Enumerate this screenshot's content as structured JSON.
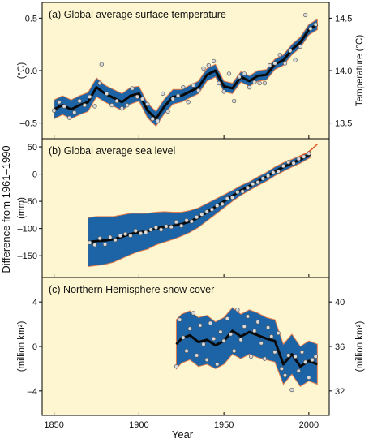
{
  "common": {
    "ylabel": "Difference from 1961–1990",
    "xlabel": "Year",
    "xlim": [
      1843,
      2012
    ],
    "xticks": [
      "1850",
      "1900",
      "1950",
      "2000"
    ],
    "xtick_values": [
      1850,
      1900,
      1950,
      2000
    ]
  },
  "colors": {
    "background": "#fdf6d0",
    "band": "#1d64a6",
    "band_edge": "#e67c4a",
    "line": "#0a0a0a",
    "point": "#d9d9d9",
    "point_edge": "#555555",
    "satellite": "#e05a2a"
  },
  "chart_data": [
    {
      "type": "line",
      "title": "(a) Global average surface temperature",
      "ylabel": "(°C)",
      "ylabel_right": "Temperature (°C)",
      "ylim": [
        -0.65,
        0.65
      ],
      "yticks": [
        "0.5",
        "0.0",
        "–0.5"
      ],
      "ytick_values": [
        0.5,
        0.0,
        -0.5
      ],
      "yticks_right": [
        "14.5",
        "14.0",
        "13.5"
      ],
      "ytick_right_values": [
        0.5,
        0.0,
        -0.5
      ],
      "smoothed": {
        "x": [
          1850,
          1855,
          1860,
          1865,
          1870,
          1875,
          1880,
          1885,
          1890,
          1895,
          1900,
          1905,
          1910,
          1915,
          1920,
          1925,
          1930,
          1935,
          1940,
          1945,
          1950,
          1955,
          1960,
          1965,
          1970,
          1975,
          1980,
          1985,
          1990,
          1995,
          2000,
          2005
        ],
        "y": [
          -0.37,
          -0.33,
          -0.37,
          -0.33,
          -0.3,
          -0.16,
          -0.22,
          -0.26,
          -0.3,
          -0.24,
          -0.22,
          -0.38,
          -0.46,
          -0.34,
          -0.25,
          -0.24,
          -0.2,
          -0.16,
          -0.04,
          0.0,
          -0.15,
          -0.17,
          -0.06,
          -0.1,
          -0.05,
          -0.04,
          0.06,
          0.1,
          0.2,
          0.27,
          0.39,
          0.44
        ]
      },
      "band_halfwidth": [
        0.09,
        0.09,
        0.09,
        0.09,
        0.09,
        0.09,
        0.08,
        0.08,
        0.08,
        0.08,
        0.07,
        0.07,
        0.07,
        0.07,
        0.07,
        0.06,
        0.06,
        0.06,
        0.06,
        0.06,
        0.05,
        0.05,
        0.05,
        0.05,
        0.05,
        0.05,
        0.05,
        0.05,
        0.05,
        0.05,
        0.05,
        0.05
      ],
      "points": {
        "x": [
          1850,
          1853,
          1856,
          1859,
          1862,
          1865,
          1868,
          1871,
          1874,
          1877,
          1878,
          1881,
          1884,
          1887,
          1890,
          1893,
          1896,
          1899,
          1902,
          1905,
          1908,
          1911,
          1914,
          1917,
          1920,
          1923,
          1926,
          1929,
          1932,
          1935,
          1938,
          1941,
          1944,
          1947,
          1950,
          1953,
          1956,
          1959,
          1962,
          1965,
          1968,
          1971,
          1974,
          1977,
          1980,
          1983,
          1986,
          1989,
          1992,
          1995,
          1998,
          2001,
          2004
        ],
        "y": [
          -0.38,
          -0.3,
          -0.34,
          -0.45,
          -0.4,
          -0.29,
          -0.33,
          -0.25,
          -0.34,
          -0.12,
          0.06,
          -0.22,
          -0.33,
          -0.29,
          -0.36,
          -0.33,
          -0.17,
          -0.25,
          -0.27,
          -0.32,
          -0.46,
          -0.48,
          -0.22,
          -0.39,
          -0.27,
          -0.24,
          -0.16,
          -0.3,
          -0.14,
          -0.19,
          0.02,
          0.05,
          0.09,
          -0.12,
          -0.2,
          -0.03,
          -0.29,
          -0.06,
          -0.03,
          -0.16,
          -0.11,
          -0.12,
          -0.12,
          0.05,
          0.07,
          0.15,
          0.07,
          0.19,
          0.1,
          0.23,
          0.53,
          0.4,
          0.44
        ]
      }
    },
    {
      "type": "line",
      "title": "(b) Global average sea level",
      "ylabel": "(mm)",
      "ylim": [
        -190,
        65
      ],
      "yticks": [
        "50",
        "0",
        "–50",
        "–100",
        "–150"
      ],
      "ytick_values": [
        50,
        0,
        -50,
        -100,
        -150
      ],
      "smoothed": {
        "x": [
          1870,
          1875,
          1880,
          1885,
          1890,
          1895,
          1900,
          1905,
          1910,
          1915,
          1920,
          1925,
          1930,
          1935,
          1940,
          1945,
          1950,
          1955,
          1960,
          1965,
          1970,
          1975,
          1980,
          1985,
          1990,
          1995,
          2000,
          2001
        ],
        "y": [
          -125,
          -123,
          -122,
          -120,
          -115,
          -110,
          -107,
          -105,
          -100,
          -97,
          -95,
          -92,
          -87,
          -80,
          -70,
          -60,
          -50,
          -40,
          -30,
          -22,
          -13,
          -5,
          5,
          13,
          20,
          27,
          35,
          37
        ]
      },
      "band_halfwidth": [
        45,
        45,
        44,
        42,
        40,
        38,
        35,
        33,
        30,
        28,
        25,
        22,
        20,
        18,
        16,
        14,
        12,
        10,
        9,
        8,
        8,
        8,
        8,
        8,
        7,
        7,
        6,
        6
      ],
      "points": {
        "x": [
          1871,
          1874,
          1877,
          1880,
          1883,
          1886,
          1889,
          1892,
          1895,
          1898,
          1901,
          1904,
          1907,
          1910,
          1913,
          1916,
          1919,
          1922,
          1925,
          1928,
          1931,
          1934,
          1937,
          1940,
          1943,
          1946,
          1949,
          1952,
          1955,
          1958,
          1961,
          1964,
          1967,
          1970,
          1973,
          1976,
          1979,
          1982,
          1985,
          1988,
          1991,
          1994,
          1997,
          2000
        ],
        "y": [
          -126,
          -130,
          -118,
          -129,
          -116,
          -121,
          -113,
          -110,
          -113,
          -104,
          -109,
          -107,
          -102,
          -98,
          -102,
          -96,
          -97,
          -88,
          -95,
          -85,
          -87,
          -79,
          -74,
          -69,
          -65,
          -58,
          -55,
          -45,
          -43,
          -33,
          -32,
          -25,
          -18,
          -15,
          -8,
          -3,
          3,
          5,
          15,
          22,
          20,
          28,
          32,
          38
        ]
      },
      "satellite": {
        "x": [
          1993,
          1995,
          1997,
          1999,
          2001,
          2003,
          2005
        ],
        "y": [
          27,
          33,
          36,
          39,
          44,
          49,
          55
        ]
      }
    },
    {
      "type": "line",
      "title": "(c) Northern Hemisphere snow cover",
      "ylabel": "(million km²)",
      "ylabel_right": "(million km²)",
      "ylim": [
        -6.2,
        6.2
      ],
      "yticks": [
        "4",
        "0",
        "–4"
      ],
      "ytick_values": [
        4,
        0,
        -4
      ],
      "yticks_right": [
        "40",
        "36",
        "32"
      ],
      "ytick_right_values": [
        4,
        0,
        -4
      ],
      "smoothed": {
        "x": [
          1922,
          1925,
          1930,
          1935,
          1940,
          1945,
          1950,
          1955,
          1960,
          1965,
          1970,
          1975,
          1980,
          1985,
          1990,
          1995,
          2000,
          2005
        ],
        "y": [
          0.2,
          0.7,
          1.0,
          0.4,
          0.6,
          0.1,
          0.5,
          1.4,
          0.9,
          1.3,
          1.0,
          0.7,
          0.5,
          -1.6,
          -0.7,
          -1.8,
          -1.3,
          -1.6
        ]
      },
      "band_halfwidth": [
        2.2,
        2.2,
        2.2,
        2.2,
        2.2,
        2.1,
        2.1,
        2.1,
        2.0,
        2.0,
        2.0,
        1.9,
        1.9,
        1.8,
        1.8,
        1.8,
        1.8,
        1.8
      ],
      "points": {
        "x": [
          1922,
          1924,
          1926,
          1928,
          1930,
          1932,
          1934,
          1936,
          1938,
          1940,
          1942,
          1944,
          1946,
          1948,
          1950,
          1952,
          1954,
          1956,
          1958,
          1960,
          1962,
          1964,
          1966,
          1968,
          1970,
          1972,
          1974,
          1976,
          1978,
          1980,
          1982,
          1984,
          1986,
          1988,
          1990,
          1992,
          1994,
          1996,
          1998,
          2000,
          2002,
          2004
        ],
        "y": [
          -1.8,
          2.4,
          0.8,
          -0.4,
          1.6,
          3.0,
          -0.8,
          1.9,
          0.2,
          -1.2,
          2.1,
          0.7,
          -1.6,
          1.3,
          0.5,
          2.5,
          1.1,
          -0.4,
          3.3,
          0.6,
          1.8,
          2.7,
          -0.9,
          1.4,
          2.2,
          0.3,
          -1.1,
          1.7,
          0.9,
          -0.5,
          1.2,
          -2.0,
          -2.6,
          -0.8,
          -3.9,
          -0.9,
          -2.2,
          -0.5,
          -1.4,
          -2.8,
          -1.2,
          -0.9
        ]
      }
    }
  ]
}
